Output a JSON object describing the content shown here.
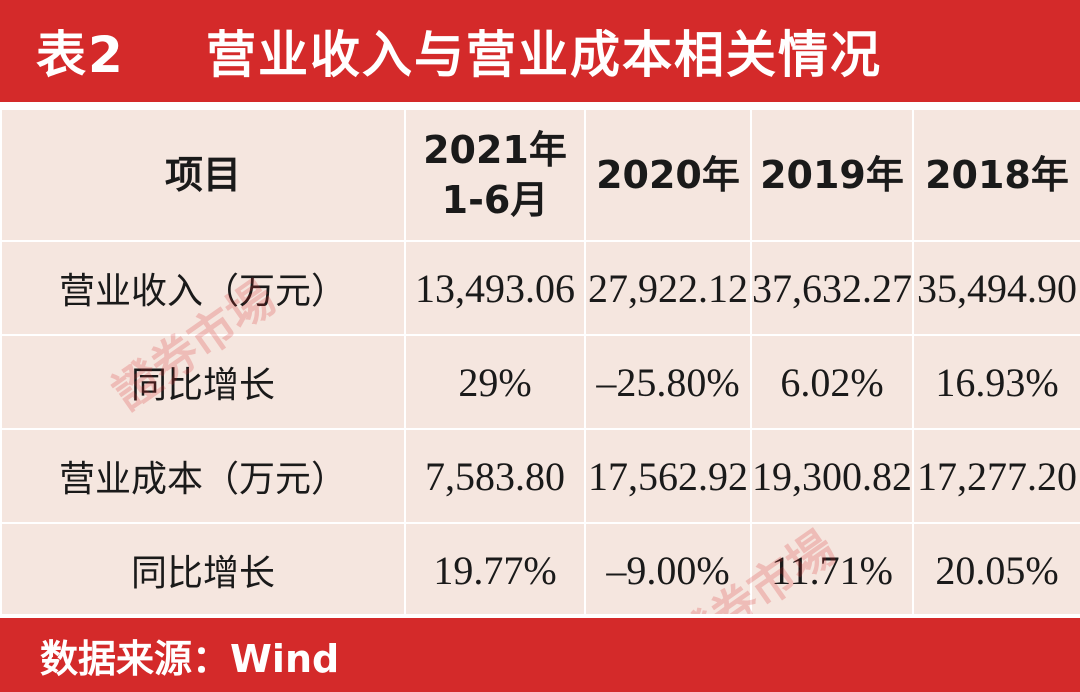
{
  "title": {
    "number": "表2",
    "text": "营业收入与营业成本相关情况"
  },
  "table": {
    "headers": [
      "项目",
      "2021年1-6月",
      "2020年",
      "2019年",
      "2018年"
    ],
    "rows": [
      {
        "label": "营业收入（万元）",
        "values": [
          "13,493.06",
          "27,922.12",
          "37,632.27",
          "35,494.90"
        ]
      },
      {
        "label": "同比增长",
        "values": [
          "29%",
          "–25.80%",
          "6.02%",
          "16.93%"
        ]
      },
      {
        "label": "营业成本（万元）",
        "values": [
          "7,583.80",
          "17,562.92",
          "19,300.82",
          "17,277.20"
        ]
      },
      {
        "label": "同比增长",
        "values": [
          "19.77%",
          "–9.00%",
          "11.71%",
          "20.05%"
        ]
      }
    ]
  },
  "source": "数据来源：Wind",
  "watermark": "證券市場",
  "colors": {
    "accent": "#d42a2a",
    "cell_bg": "#f5e6df"
  }
}
